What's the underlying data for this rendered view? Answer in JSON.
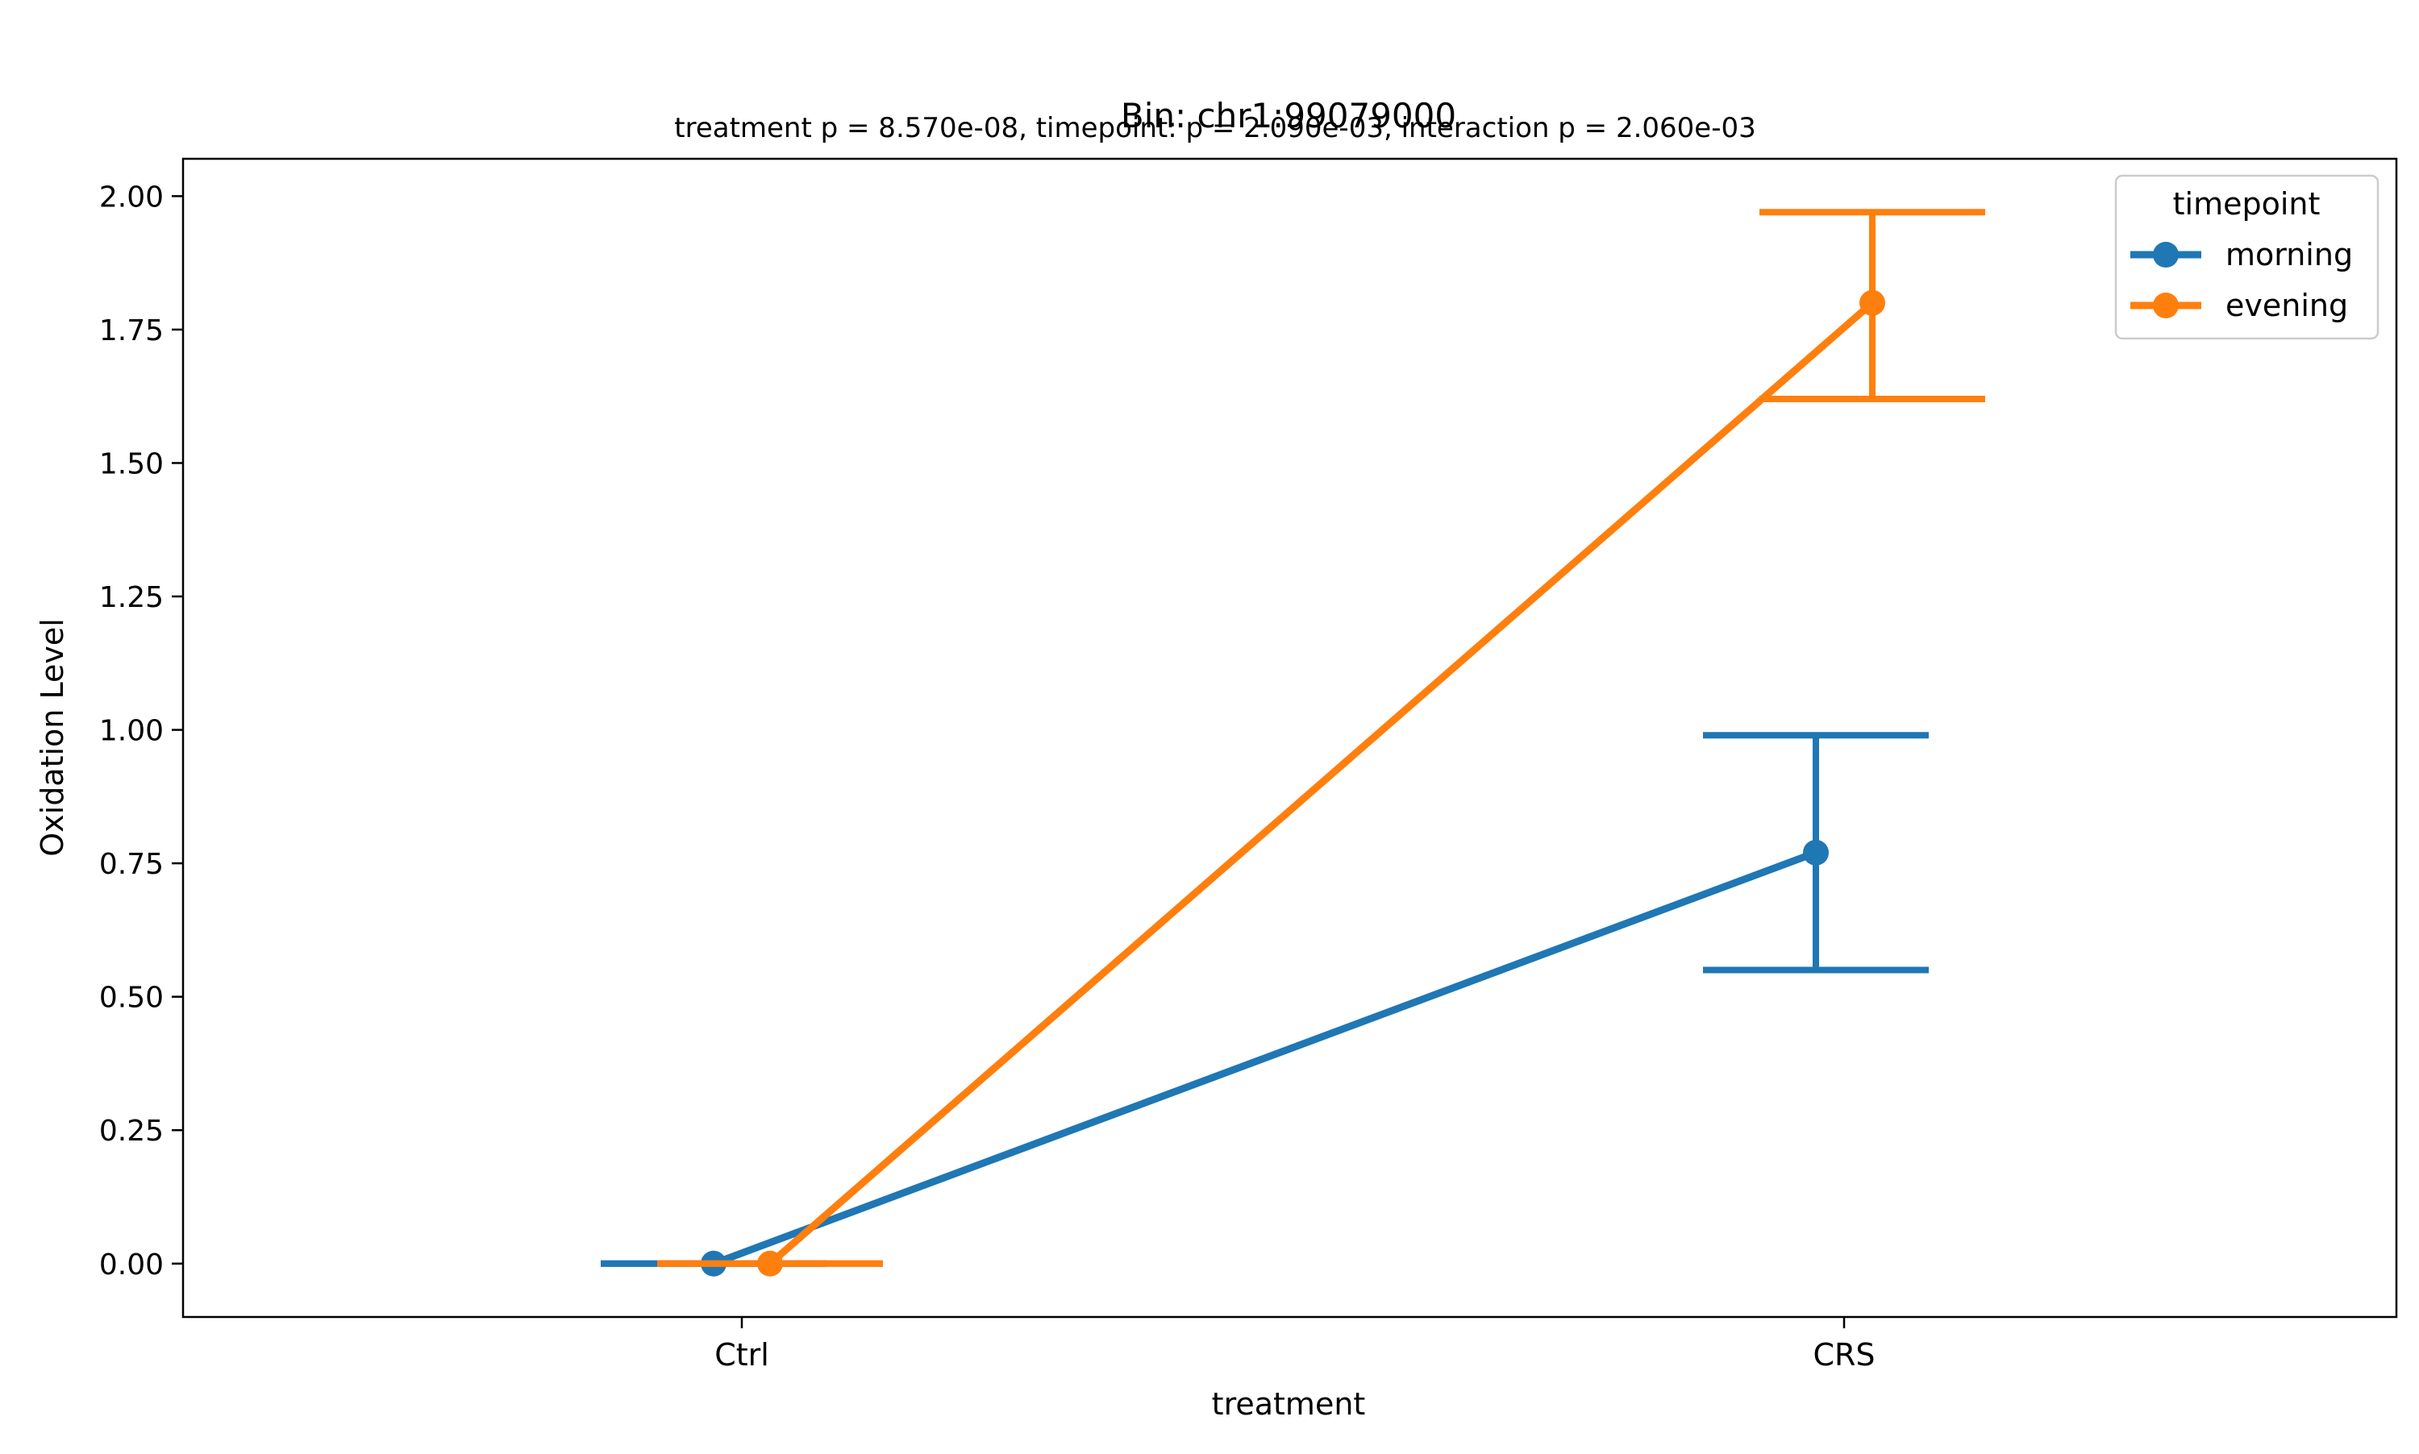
{
  "chart_data": {
    "type": "line",
    "title": "Bin: chr1:99079000",
    "subtitle": "treatment p = 8.570e-08, timepoint: p = 2.090e-03, interaction p = 2.060e-03",
    "xlabel": "treatment",
    "ylabel": "Oxidation Level",
    "categories": [
      "Ctrl",
      "CRS"
    ],
    "ylim": [
      -0.1,
      2.07
    ],
    "yticks": [
      0.0,
      0.25,
      0.5,
      0.75,
      1.0,
      1.25,
      1.5,
      1.75,
      2.0
    ],
    "ytick_labels": [
      "0.00",
      "0.25",
      "0.50",
      "0.75",
      "1.00",
      "1.25",
      "1.50",
      "1.75",
      "2.00"
    ],
    "grid": false,
    "legend": {
      "title": "timepoint",
      "placement": "top-right"
    },
    "series": [
      {
        "name": "morning",
        "color": "#1f77b4",
        "values": [
          0.0,
          0.77
        ],
        "error_low": [
          0.0,
          0.55
        ],
        "error_high": [
          0.0,
          0.99
        ]
      },
      {
        "name": "evening",
        "color": "#ff7f0e",
        "values": [
          0.0,
          1.8
        ],
        "error_low": [
          0.0,
          1.62
        ],
        "error_high": [
          0.0,
          1.97
        ]
      }
    ]
  }
}
